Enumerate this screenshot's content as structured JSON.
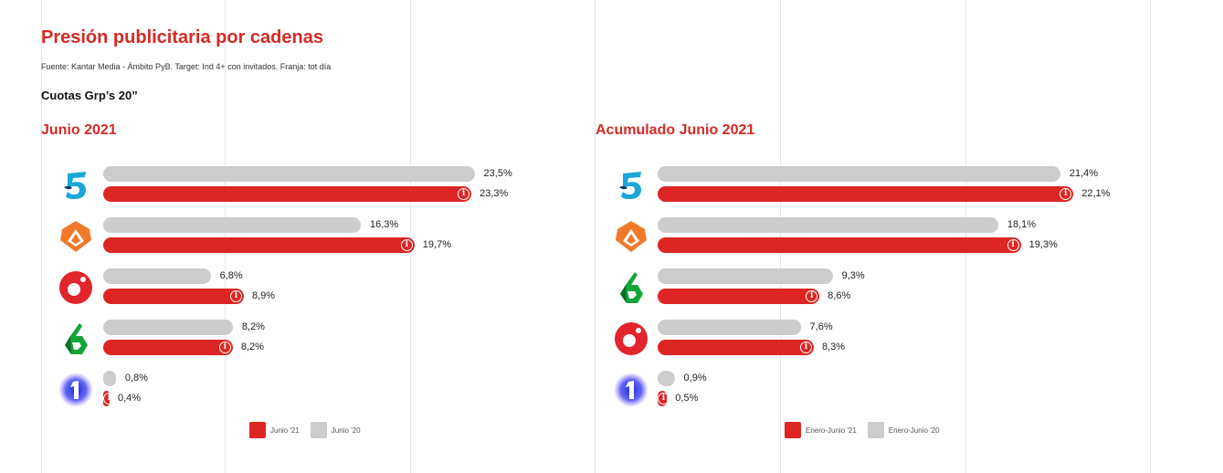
{
  "header": {
    "title": "Presión publicitaria por cadenas",
    "source": "Fuente: Kantar Media - Ámbito PyB. Target: Ind 4+ con invitados. Franja: tot día",
    "metric": "Cuotas Grp’s 20”"
  },
  "colors": {
    "current": "#dd2624",
    "previous": "#cccccc",
    "accent": "#d42a26"
  },
  "chart_data": [
    {
      "type": "bar",
      "orientation": "horizontal",
      "title": "Junio 2021",
      "categories": [
        "telecinco-logo",
        "antena3-logo",
        "cuatro-logo",
        "lasexta-logo",
        "la1-logo"
      ],
      "series": [
        {
          "name": "Junio '20",
          "values": [
            23.5,
            16.3,
            6.8,
            8.2,
            0.8
          ],
          "labels": [
            "23,5%",
            "16,3%",
            "6,8%",
            "8,2%",
            "0,8%"
          ]
        },
        {
          "name": "Junio '21",
          "values": [
            23.3,
            19.7,
            8.9,
            8.2,
            0.4
          ],
          "labels": [
            "23,3%",
            "19,7%",
            "8,9%",
            "8,2%",
            "0,4%"
          ]
        }
      ],
      "legend": {
        "position": "bottom-center",
        "items": [
          "Junio '21",
          "Junio '20"
        ]
      },
      "grid": true
    },
    {
      "type": "bar",
      "orientation": "horizontal",
      "title": "Acumulado Junio 2021",
      "categories": [
        "telecinco-logo",
        "antena3-logo",
        "lasexta-logo",
        "cuatro-logo",
        "la1-logo"
      ],
      "series": [
        {
          "name": "Enero-Junio '20",
          "values": [
            21.4,
            18.1,
            9.3,
            7.6,
            0.9
          ],
          "labels": [
            "21,4%",
            "18,1%",
            "9,3%",
            "7,6%",
            "0,9%"
          ]
        },
        {
          "name": "Enero-Junio '21",
          "values": [
            22.1,
            19.3,
            8.6,
            8.3,
            0.5
          ],
          "labels": [
            "22,1%",
            "19,3%",
            "8,6%",
            "8,3%",
            "0,5%"
          ]
        }
      ],
      "legend": {
        "position": "bottom-center",
        "items": [
          "Enero-Junio '21",
          "Enero-Junio '20"
        ]
      },
      "grid": true
    }
  ]
}
